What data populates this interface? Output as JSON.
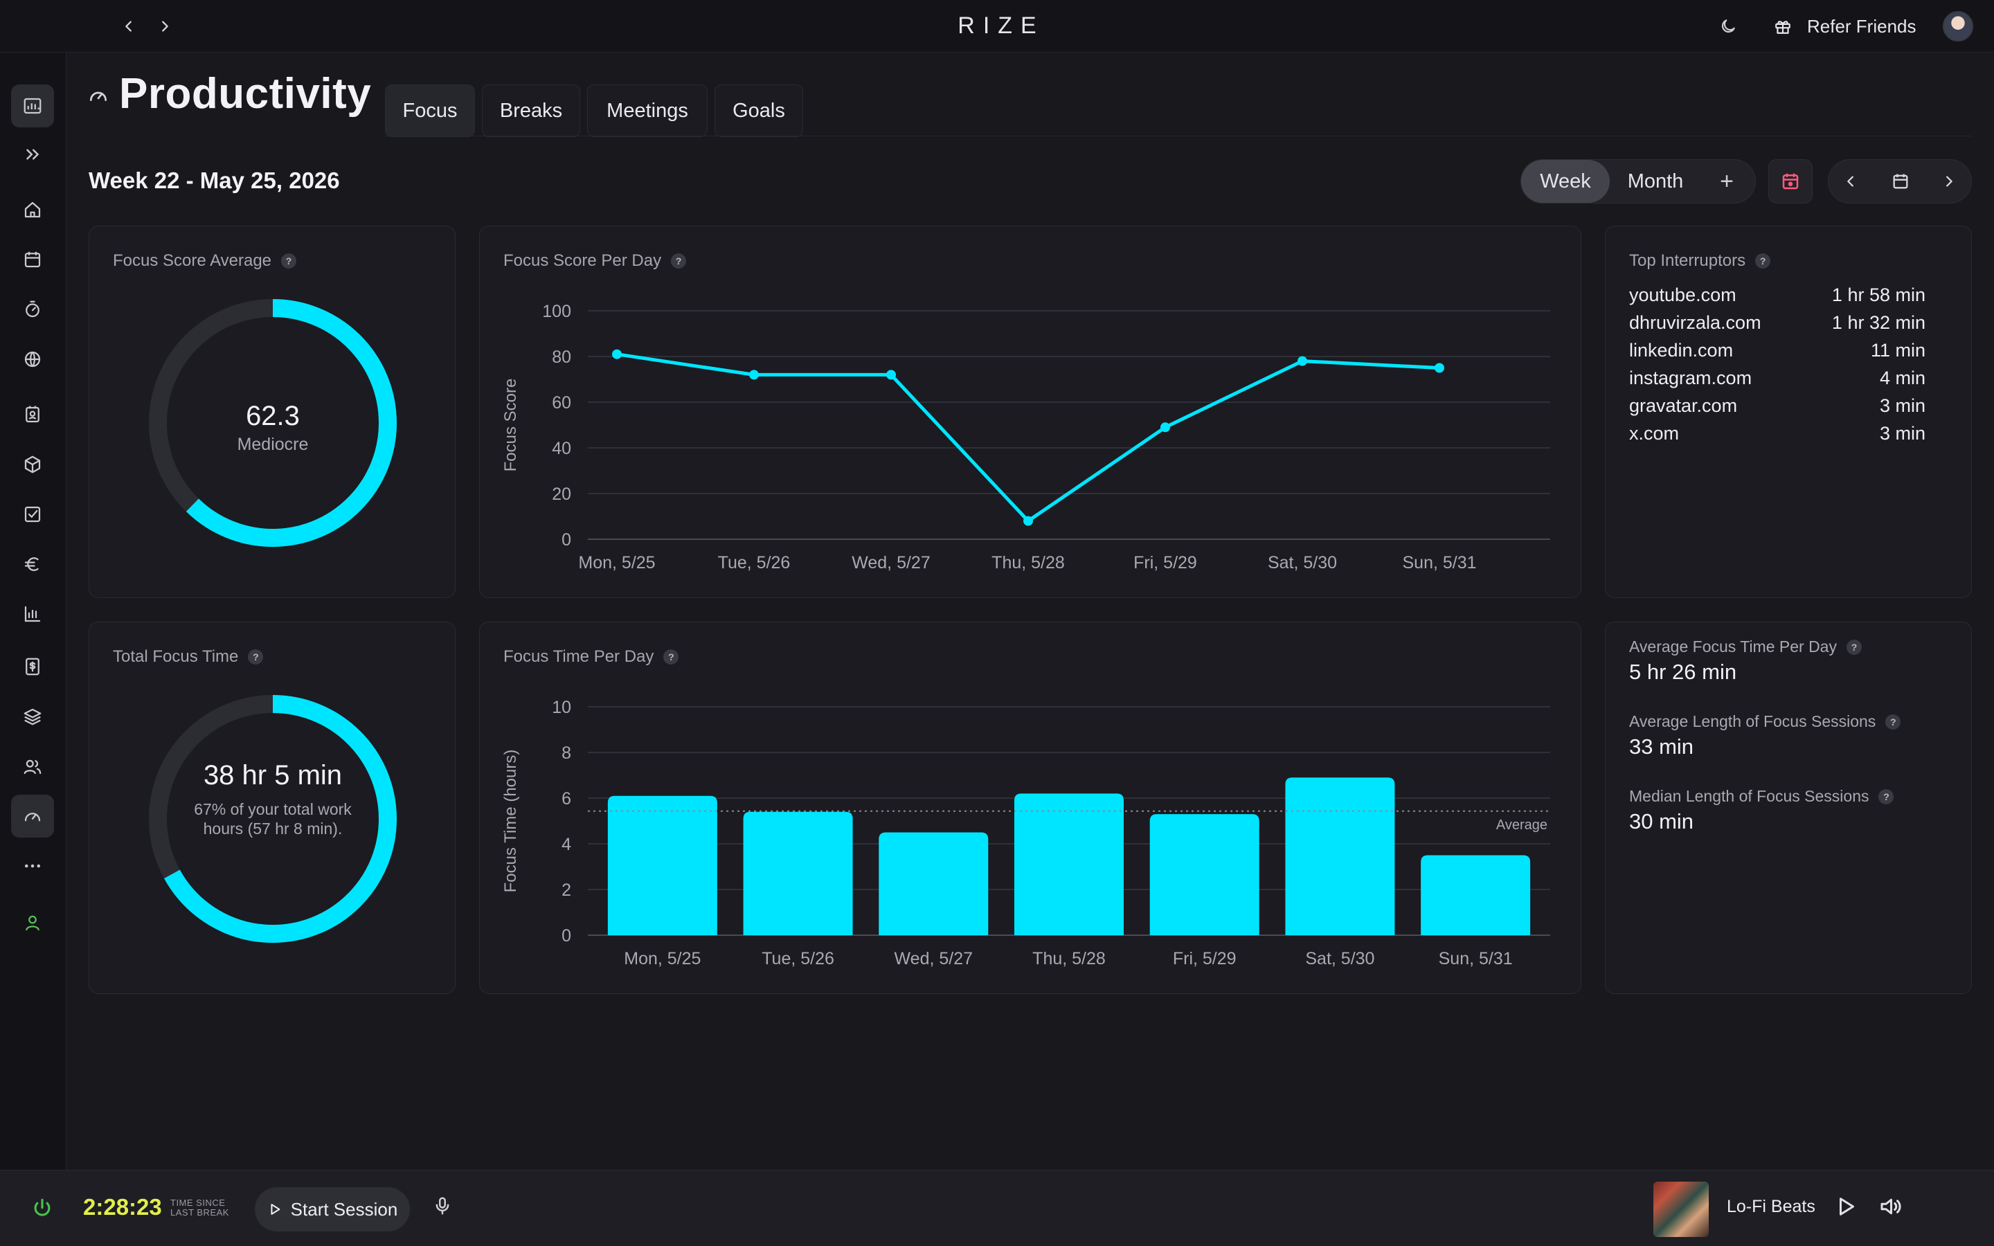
{
  "app": {
    "brand": "RIZE",
    "refer_label": "Refer Friends"
  },
  "sidebar": {
    "items": [
      {
        "icon": "dashboard-icon"
      },
      {
        "icon": "expand-icon"
      },
      {
        "icon": "home-icon"
      },
      {
        "icon": "calendar-icon"
      },
      {
        "icon": "timer-icon"
      },
      {
        "icon": "globe-icon"
      },
      {
        "icon": "contacts-icon"
      },
      {
        "icon": "box-icon"
      },
      {
        "icon": "checkbox-icon"
      },
      {
        "icon": "euro-icon"
      },
      {
        "icon": "bar-chart-icon"
      },
      {
        "icon": "invoice-icon"
      },
      {
        "icon": "layers-icon"
      },
      {
        "icon": "users-icon"
      },
      {
        "icon": "gauge-icon",
        "active": true
      },
      {
        "icon": "more-icon"
      },
      {
        "icon": "user-icon"
      }
    ]
  },
  "page": {
    "title": "Productivity",
    "tabs": [
      {
        "label": "Focus",
        "active": true
      },
      {
        "label": "Breaks"
      },
      {
        "label": "Meetings"
      },
      {
        "label": "Goals"
      }
    ],
    "week_label": "Week 22 - May 25, 2026",
    "range": {
      "week": "Week",
      "month": "Month",
      "plus": "+"
    }
  },
  "focus_score_average": {
    "title": "Focus Score Average",
    "value": "62.3",
    "label": "Mediocre",
    "percent": 62.3
  },
  "total_focus_time": {
    "title": "Total Focus Time",
    "value": "38 hr 5 min",
    "sub": "67% of your total work hours (57 hr 8 min).",
    "percent": 67
  },
  "top_interruptors": {
    "title": "Top Interruptors",
    "items": [
      {
        "site": "youtube.com",
        "duration": "1 hr 58 min"
      },
      {
        "site": "dhruvirzala.com",
        "duration": "1 hr 32 min"
      },
      {
        "site": "linkedin.com",
        "duration": "11 min"
      },
      {
        "site": "instagram.com",
        "duration": "4 min"
      },
      {
        "site": "gravatar.com",
        "duration": "3 min"
      },
      {
        "site": "x.com",
        "duration": "3 min"
      }
    ]
  },
  "stats": [
    {
      "label": "Average Focus Time Per Day",
      "value": "5 hr 26 min"
    },
    {
      "label": "Average Length of Focus Sessions",
      "value": "33 min"
    },
    {
      "label": "Median Length of Focus Sessions",
      "value": "30 min"
    }
  ],
  "colors": {
    "accent": "#00e5ff",
    "track": "#2c2c33"
  },
  "chart_data": [
    {
      "type": "line",
      "title": "Focus Score Per Day",
      "ylabel": "Focus Score",
      "categories": [
        "Mon, 5/25",
        "Tue, 5/26",
        "Wed, 5/27",
        "Thu, 5/28",
        "Fri, 5/29",
        "Sat, 5/30",
        "Sun, 5/31"
      ],
      "values": [
        81,
        72,
        72,
        8,
        49,
        78,
        75
      ],
      "ylim": [
        0,
        100
      ],
      "yticks": [
        0,
        20,
        40,
        60,
        80,
        100
      ],
      "grid": true
    },
    {
      "type": "bar",
      "title": "Focus Time Per Day",
      "ylabel": "Focus Time (hours)",
      "categories": [
        "Mon, 5/25",
        "Tue, 5/26",
        "Wed, 5/27",
        "Thu, 5/28",
        "Fri, 5/29",
        "Sat, 5/30",
        "Sun, 5/31"
      ],
      "values": [
        6.1,
        5.4,
        4.5,
        6.2,
        5.3,
        6.9,
        3.5
      ],
      "ylim": [
        0,
        10
      ],
      "yticks": [
        0,
        2,
        4,
        6,
        8,
        10
      ],
      "average": 5.43,
      "average_label": "Average",
      "grid": true
    }
  ],
  "bottom": {
    "timer": "2:28:23",
    "since_line1": "TIME SINCE",
    "since_line2": "LAST BREAK",
    "start_label": "Start Session",
    "track": "Lo-Fi Beats"
  }
}
